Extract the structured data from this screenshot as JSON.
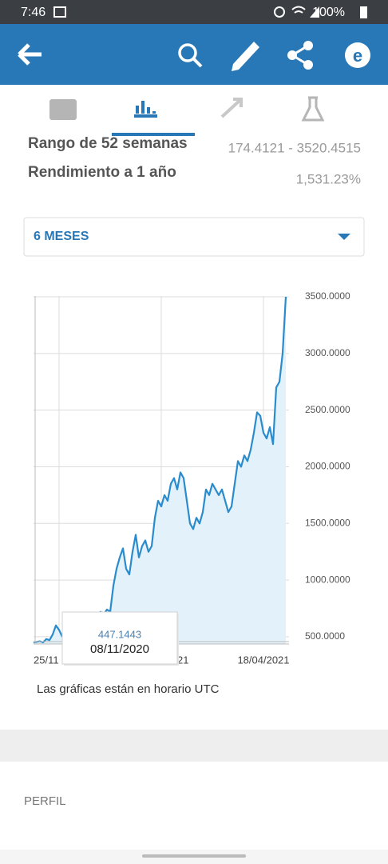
{
  "status_bar": {
    "time": "7:46",
    "battery": "100%"
  },
  "stats": [
    {
      "label": "Rango de 52 semanas",
      "value": "174.4121 - 3520.4515"
    },
    {
      "label": "Rendimiento a 1 año",
      "value": "1,531.23%"
    }
  ],
  "period_selector": "6 MESES",
  "chart_data": {
    "type": "line",
    "categories": [
      null,
      null,
      null,
      null,
      null,
      null,
      null,
      null,
      "25/11",
      null,
      null,
      null,
      null,
      null,
      null,
      null,
      null,
      null,
      null,
      null,
      null,
      null,
      null,
      null,
      null,
      null,
      null,
      null,
      null,
      null,
      null,
      null,
      null,
      null,
      null,
      null,
      null,
      null,
      null,
      null,
      "21",
      null,
      null,
      null,
      null,
      null,
      null,
      null,
      null,
      null,
      null,
      null,
      null,
      null,
      null,
      null,
      null,
      null,
      null,
      null,
      null,
      null,
      null,
      null,
      null,
      null,
      null,
      null,
      null,
      null,
      null,
      null,
      "18/04/2021",
      null,
      null,
      null,
      null,
      null,
      null,
      null
    ],
    "values": [
      450,
      455,
      460,
      450,
      480,
      470,
      520,
      600,
      560,
      500,
      500,
      520,
      510,
      540,
      560,
      580,
      600,
      620,
      650,
      680,
      700,
      720,
      700,
      740,
      720,
      950,
      1100,
      1200,
      1280,
      1100,
      1050,
      1250,
      1400,
      1200,
      1300,
      1350,
      1250,
      1300,
      1550,
      1700,
      1650,
      1750,
      1700,
      1850,
      1900,
      1800,
      1950,
      1900,
      1700,
      1500,
      1450,
      1550,
      1500,
      1600,
      1800,
      1750,
      1850,
      1800,
      1750,
      1800,
      1700,
      1600,
      1650,
      1850,
      2050,
      2000,
      2100,
      2050,
      2150,
      2300,
      2480,
      2450,
      2300,
      2250,
      2350,
      2200,
      2700,
      2750,
      3000,
      3500
    ],
    "color": "#2a8ccc",
    "ylim": [
      436,
      3500
    ],
    "yticks": [
      {
        "value": 500,
        "label": "500.0000"
      },
      {
        "value": 1000,
        "label": "1000.0000"
      },
      {
        "value": 1500,
        "label": "1500.0000"
      },
      {
        "value": 2000,
        "label": "2000.0000"
      },
      {
        "value": 2500,
        "label": "2500.0000"
      },
      {
        "value": 3000,
        "label": "3000.0000"
      },
      {
        "value": 3500,
        "label": "3500.0000"
      }
    ],
    "grid": true
  },
  "tooltip": {
    "value": "447.1443",
    "date": "08/11/2020"
  },
  "note": "Las gráficas están en horario UTC",
  "section_title": "PERFIL"
}
